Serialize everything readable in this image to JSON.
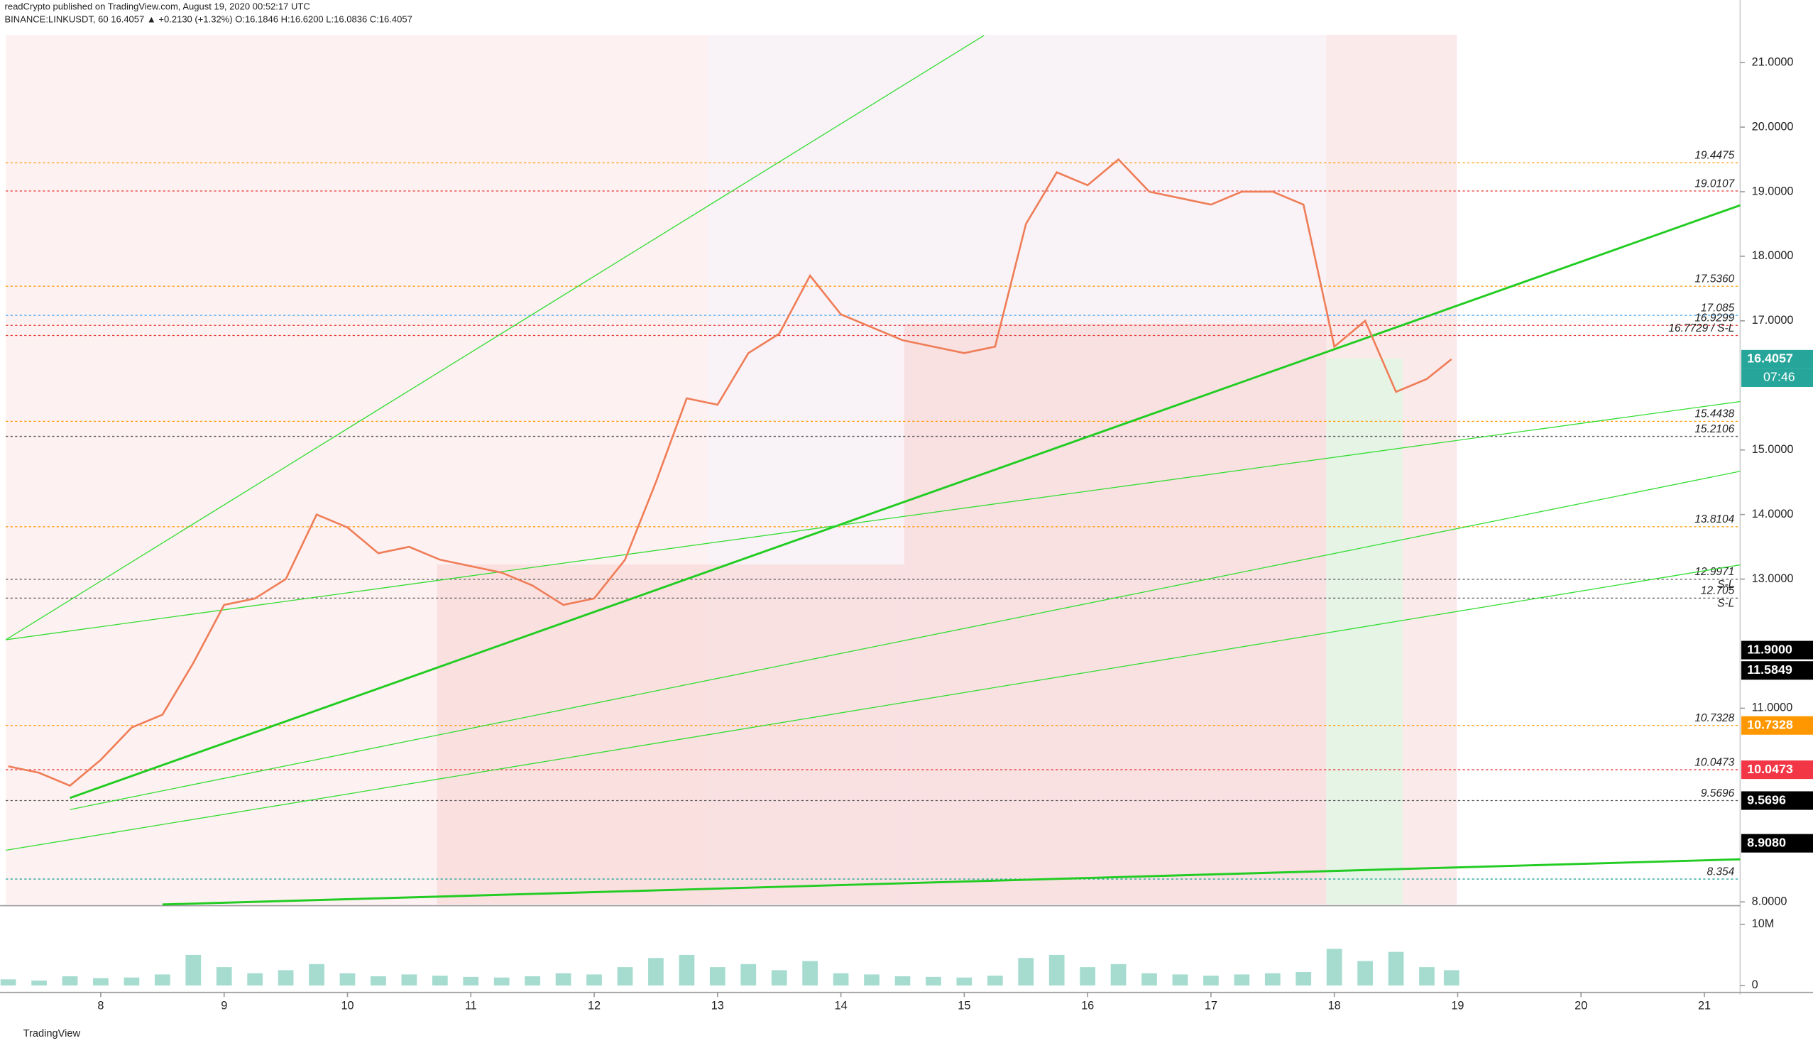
{
  "chart_data": {
    "type": "line",
    "publisher": "readCrypto published on TradingView.com, August 19, 2020 00:52:17 UTC",
    "title": "BINANCE:LINKUSDT, 60 16.4057 ▲ +0.2130 (+1.32%) O:16.1846 H:16.6200 L:16.0836 C:16.4057",
    "brand": "TradingView",
    "countdown": "07:46",
    "x": [
      7.25,
      7.5,
      7.75,
      8,
      8.25,
      8.5,
      8.75,
      9,
      9.25,
      9.5,
      9.75,
      10,
      10.25,
      10.5,
      10.75,
      11,
      11.25,
      11.5,
      11.75,
      12,
      12.25,
      12.5,
      12.75,
      13,
      13.25,
      13.5,
      13.75,
      14,
      14.25,
      14.5,
      14.75,
      15,
      15.25,
      15.5,
      15.75,
      16,
      16.25,
      16.5,
      16.75,
      17,
      17.25,
      17.5,
      17.75,
      18,
      18.25,
      18.5,
      18.75,
      18.95
    ],
    "series": [
      {
        "name": "LINKUSDT",
        "color": "#ef7d57",
        "values": [
          10.1,
          10.0,
          9.8,
          10.2,
          10.7,
          10.9,
          11.7,
          12.6,
          12.7,
          13.0,
          14.0,
          13.8,
          13.4,
          13.5,
          13.3,
          13.2,
          13.1,
          12.9,
          12.6,
          12.7,
          13.3,
          14.5,
          15.8,
          15.7,
          16.5,
          16.8,
          17.7,
          17.1,
          16.9,
          16.7,
          16.6,
          16.5,
          16.6,
          18.5,
          19.3,
          19.1,
          19.5,
          19.0,
          18.9,
          18.8,
          19.0,
          19.0,
          18.8,
          16.6,
          17.0,
          15.9,
          16.1,
          16.4057
        ]
      }
    ],
    "volume": {
      "color": "#8fd3c3",
      "values": [
        1000000,
        800000,
        1500000,
        1200000,
        1300000,
        1800000,
        5000000,
        3000000,
        2000000,
        2500000,
        3500000,
        2000000,
        1500000,
        1800000,
        1600000,
        1400000,
        1300000,
        1500000,
        2000000,
        1800000,
        3000000,
        4500000,
        5000000,
        3000000,
        3500000,
        2500000,
        4000000,
        2000000,
        1800000,
        1500000,
        1400000,
        1300000,
        1600000,
        4500000,
        5000000,
        3000000,
        3500000,
        2000000,
        1800000,
        1600000,
        1800000,
        2000000,
        2200000,
        6000000,
        4000000,
        5500000,
        3000000,
        2500000
      ]
    },
    "xlim": [
      7.23,
      21.29
    ],
    "xticks": [
      8,
      9,
      10,
      11,
      12,
      13,
      14,
      15,
      16,
      17,
      18,
      19,
      20,
      21
    ],
    "ylim": [
      7.96,
      21.43
    ],
    "yticks": [
      {
        "value": 21,
        "label": "21.0000"
      },
      {
        "value": 20,
        "label": "20.0000"
      },
      {
        "value": 19,
        "label": "19.0000"
      },
      {
        "value": 18,
        "label": "18.0000"
      },
      {
        "value": 17,
        "label": "17.0000"
      },
      {
        "value": 15,
        "label": "15.0000"
      },
      {
        "value": 14,
        "label": "14.0000"
      },
      {
        "value": 13,
        "label": "13.0000"
      },
      {
        "value": 11,
        "label": "11.0000"
      },
      {
        "value": 8,
        "label": "8.0000"
      }
    ],
    "vol_ylim": [
      0,
      12500000
    ],
    "vol_yticks": [
      {
        "value": 10000000,
        "label": "10M"
      },
      0
    ],
    "levels": [
      {
        "value": 19.4475,
        "label": "19.4475",
        "color": "#ff9800"
      },
      {
        "value": 19.0107,
        "label": "19.0107",
        "color": "#e53935"
      },
      {
        "value": 17.536,
        "label": "17.5360",
        "color": "#ff9800"
      },
      {
        "value": 17.085,
        "label": "17.085",
        "color": "#42a5f5"
      },
      {
        "value": 16.9299,
        "label": "16.9299",
        "color": "#e53935"
      },
      {
        "value": 16.7729,
        "label": "16.7729 / S-L",
        "color": "#e53935"
      },
      {
        "value": 15.4438,
        "label": "15.4438",
        "color": "#ff9800"
      },
      {
        "value": 15.2106,
        "label": "15.2106",
        "color": "#555555"
      },
      {
        "value": 13.8104,
        "label": "13.8104",
        "color": "#ff9800"
      },
      {
        "value": 12.9971,
        "label": "12.9971",
        "note": "S-L",
        "color": "#555555"
      },
      {
        "value": 12.705,
        "label": "12.705",
        "note": "S-L",
        "color": "#555555"
      },
      {
        "value": 10.7328,
        "label": "10.7328",
        "color": "#ff9800"
      },
      {
        "value": 10.0473,
        "label": "10.0473",
        "color": "#e53935"
      },
      {
        "value": 9.5696,
        "label": "9.5696",
        "color": "#555555"
      },
      {
        "value": 8.354,
        "label": "8.354",
        "color": "#26a69a"
      }
    ],
    "axis_badges": [
      {
        "value": 16.4057,
        "label": "16.4057",
        "color": "#26a69a"
      },
      {
        "value": 11.9,
        "label": "11.9000",
        "color": "#000000"
      },
      {
        "value": 11.5849,
        "label": "11.5849",
        "color": "#000000"
      },
      {
        "value": 10.7328,
        "label": "10.7328",
        "color": "#ff9800"
      },
      {
        "value": 10.0473,
        "label": "10.0473",
        "color": "#f23645"
      },
      {
        "value": 9.5696,
        "label": "9.5696",
        "color": "#000000"
      },
      {
        "value": 8.908,
        "label": "8.9080",
        "color": "#000000"
      }
    ],
    "trend_lines": [
      {
        "x": [
          7.75,
          21.29
        ],
        "y": [
          9.61,
          18.79
        ],
        "color": "#22cc22",
        "width": 1.8
      },
      {
        "x": [
          7.23,
          15.16
        ],
        "y": [
          12.06,
          21.42
        ],
        "color": "#33dd33",
        "width": 0.8
      },
      {
        "x": [
          7.23,
          21.29
        ],
        "y": [
          12.06,
          15.75
        ],
        "color": "#33dd33",
        "width": 0.8
      },
      {
        "x": [
          7.75,
          21.29
        ],
        "y": [
          9.43,
          14.67
        ],
        "color": "#33dd33",
        "width": 0.8
      },
      {
        "x": [
          7.23,
          21.29
        ],
        "y": [
          8.8,
          13.22
        ],
        "color": "#33dd33",
        "width": 0.8
      },
      {
        "x": [
          8.5,
          21.29
        ],
        "y": [
          7.96,
          8.66
        ],
        "color": "#22cc22",
        "width": 1.8
      }
    ]
  }
}
